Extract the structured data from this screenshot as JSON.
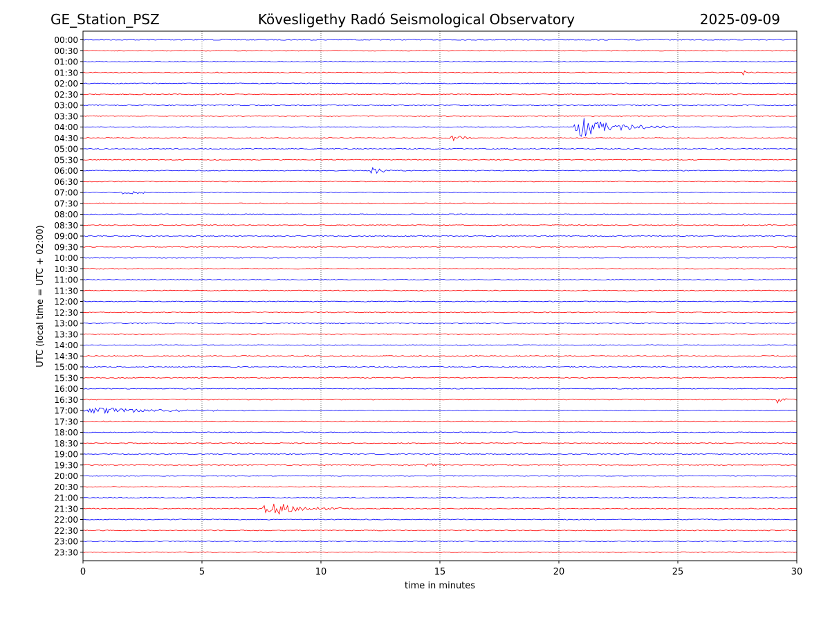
{
  "header": {
    "station": "GE_Station_PSZ",
    "observatory": "Kövesligethy Radó Seismological Observatory",
    "date": "2025-09-09"
  },
  "chart_data": {
    "type": "line",
    "title": "Kövesligethy Radó Seismological Observatory",
    "xlabel": "time in minutes",
    "ylabel": "UTC (local time = UTC + 02:00)",
    "xlim": [
      0,
      30
    ],
    "x_ticks": [
      "0",
      "5",
      "10",
      "15",
      "20",
      "25",
      "30"
    ],
    "grid": "vertical dotted lines at 5-minute ticks",
    "colors": {
      "even_rows": "#0000ff",
      "odd_rows": "#ff0000"
    },
    "rows": [
      "00:00",
      "00:30",
      "01:00",
      "01:30",
      "02:00",
      "02:30",
      "03:00",
      "03:30",
      "04:00",
      "04:30",
      "05:00",
      "05:30",
      "06:00",
      "06:30",
      "07:00",
      "07:30",
      "08:00",
      "08:30",
      "09:00",
      "09:30",
      "10:00",
      "10:30",
      "11:00",
      "11:30",
      "12:00",
      "12:30",
      "13:00",
      "13:30",
      "14:00",
      "14:30",
      "15:00",
      "15:30",
      "16:00",
      "16:30",
      "17:00",
      "17:30",
      "18:00",
      "18:30",
      "19:00",
      "19:30",
      "20:00",
      "20:30",
      "21:00",
      "21:30",
      "22:00",
      "22:30",
      "23:00",
      "23:30"
    ],
    "events": [
      {
        "row": "01:30",
        "start_min": 27.7,
        "duration_min": 0.4,
        "amplitude": 0.5
      },
      {
        "row": "04:00",
        "start_min": 20.6,
        "duration_min": 4.5,
        "amplitude": 1.4
      },
      {
        "row": "04:30",
        "start_min": 15.3,
        "duration_min": 1.5,
        "amplitude": 0.55
      },
      {
        "row": "06:00",
        "start_min": 12.0,
        "duration_min": 1.6,
        "amplitude": 0.5
      },
      {
        "row": "07:00",
        "start_min": 1.6,
        "duration_min": 1.8,
        "amplitude": 0.4
      },
      {
        "row": "08:30",
        "start_min": 27.6,
        "duration_min": 0.3,
        "amplitude": 0.35
      },
      {
        "row": "16:30",
        "start_min": 29.1,
        "duration_min": 0.9,
        "amplitude": 0.6
      },
      {
        "row": "17:00",
        "start_min": 0.0,
        "duration_min": 7.0,
        "amplitude": 0.45
      },
      {
        "row": "19:30",
        "start_min": 14.2,
        "duration_min": 1.6,
        "amplitude": 0.35
      },
      {
        "row": "21:30",
        "start_min": 7.5,
        "duration_min": 3.9,
        "amplitude": 1.1
      }
    ]
  }
}
